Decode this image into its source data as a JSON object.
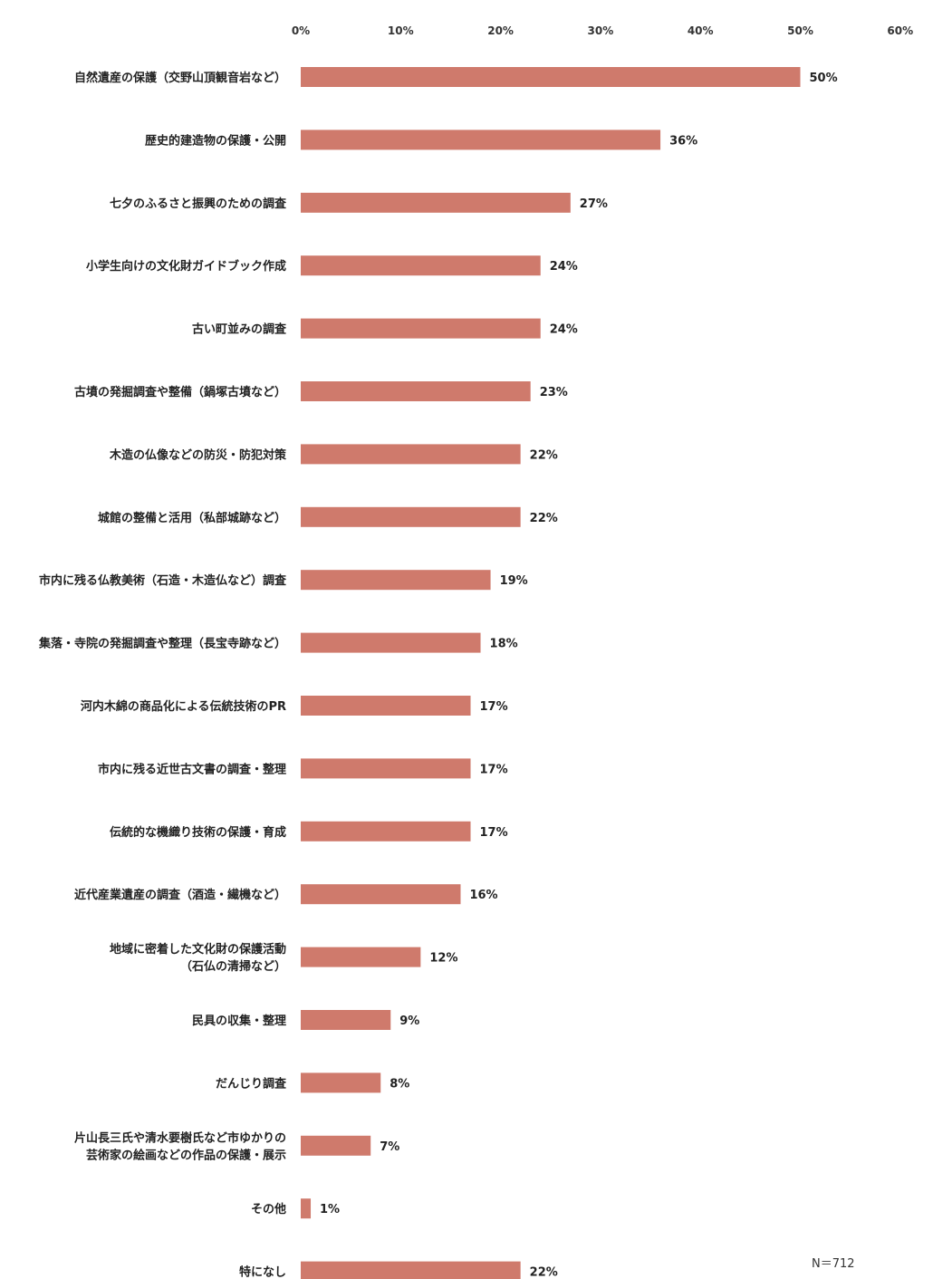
{
  "chart_data": {
    "type": "bar",
    "orientation": "horizontal",
    "xlim": [
      0,
      60
    ],
    "x_ticks": [
      "0%",
      "10%",
      "20%",
      "30%",
      "40%",
      "50%",
      "60%"
    ],
    "value_suffix": "%",
    "grid": false,
    "bar_color": "#cf7a6c",
    "sample_size": "N＝712",
    "categories": [
      [
        "自然遺産の保護（交野山頂観音岩など）"
      ],
      [
        "歴史的建造物の保護・公開"
      ],
      [
        "七夕のふるさと振興のための調査"
      ],
      [
        "小学生向けの文化財ガイドブック作成"
      ],
      [
        "古い町並みの調査"
      ],
      [
        "古墳の発掘調査や整備（鍋塚古墳など）"
      ],
      [
        "木造の仏像などの防災・防犯対策"
      ],
      [
        "城館の整備と活用（私部城跡など）"
      ],
      [
        "市内に残る仏教美術（石造・木造仏など）調査"
      ],
      [
        "集落・寺院の発掘調査や整理（長宝寺跡など）"
      ],
      [
        "河内木綿の商品化による伝統技術のPR"
      ],
      [
        "市内に残る近世古文書の調査・整理"
      ],
      [
        "伝統的な機織り技術の保護・育成"
      ],
      [
        "近代産業遺産の調査（酒造・繊機など）"
      ],
      [
        "地域に密着した文化財の保護活動",
        "（石仏の清掃など）"
      ],
      [
        "民具の収集・整理"
      ],
      [
        "だんじり調査"
      ],
      [
        "片山長三氏や清水要樹氏など市ゆかりの",
        "芸術家の絵画などの作品の保護・展示"
      ],
      [
        "その他"
      ],
      [
        "特になし"
      ]
    ],
    "values": [
      50,
      36,
      27,
      24,
      24,
      23,
      22,
      22,
      19,
      18,
      17,
      17,
      17,
      16,
      12,
      9,
      8,
      7,
      1,
      22
    ]
  }
}
